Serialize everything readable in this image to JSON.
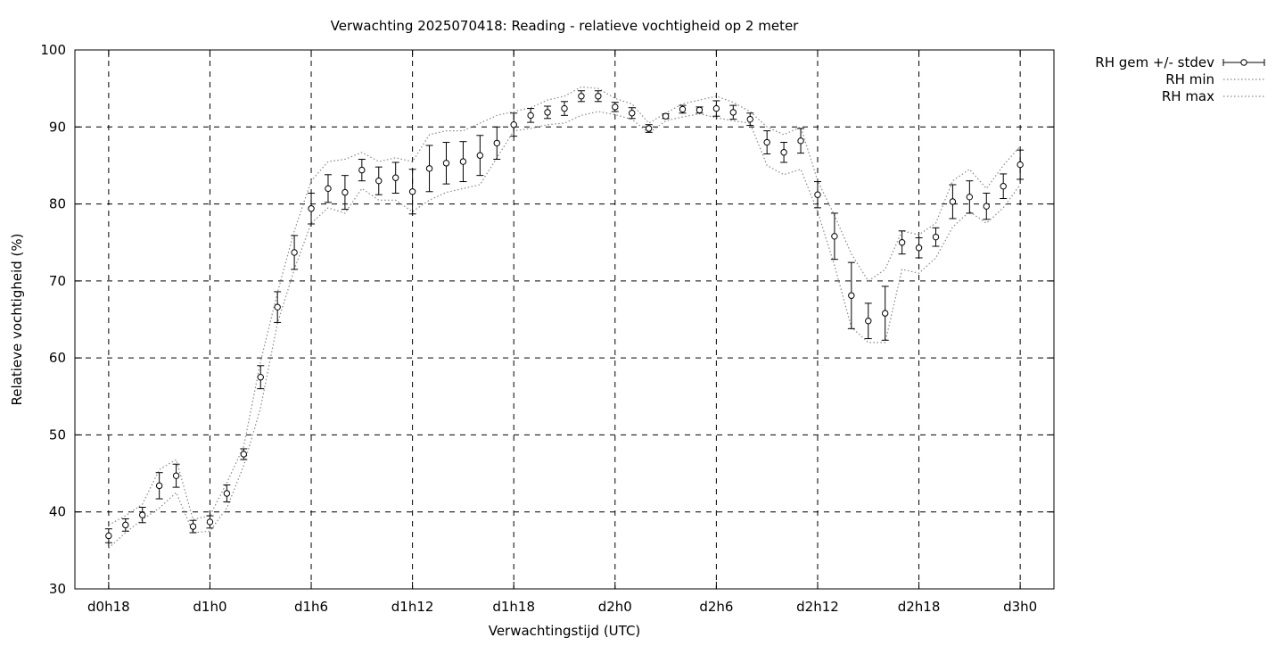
{
  "chart_data": {
    "type": "line",
    "title": "Verwachting 2025070418: Reading - relatieve vochtigheid op 2 meter",
    "xlabel": "Verwachtingstijd (UTC)",
    "ylabel": "Relatieve vochtigheid (%)",
    "ylim": [
      30,
      100
    ],
    "xlim": [
      -2,
      56
    ],
    "yticks": [
      30,
      40,
      50,
      60,
      70,
      80,
      90,
      100
    ],
    "xticks": [
      {
        "t": 0,
        "label": "d0h18"
      },
      {
        "t": 6,
        "label": "d1h0"
      },
      {
        "t": 12,
        "label": "d1h6"
      },
      {
        "t": 18,
        "label": "d1h12"
      },
      {
        "t": 24,
        "label": "d1h18"
      },
      {
        "t": 30,
        "label": "d2h0"
      },
      {
        "t": 36,
        "label": "d2h6"
      },
      {
        "t": 42,
        "label": "d2h12"
      },
      {
        "t": 48,
        "label": "d2h18"
      },
      {
        "t": 54,
        "label": "d3h0"
      }
    ],
    "grid": true,
    "legend_position": "outside-top-right",
    "legend": [
      {
        "name": "RH gem +/- stdev",
        "style": "errorbar"
      },
      {
        "name": "RH min",
        "style": "dotted"
      },
      {
        "name": "RH max",
        "style": "dotted"
      }
    ],
    "series": [
      {
        "name": "RH gem +/- stdev",
        "x": [
          0,
          1,
          2,
          3,
          4,
          5,
          6,
          7,
          8,
          9,
          10,
          11,
          12,
          13,
          14,
          15,
          16,
          17,
          18,
          19,
          20,
          21,
          22,
          23,
          24,
          25,
          26,
          27,
          28,
          29,
          30,
          31,
          32,
          33,
          34,
          35,
          36,
          37,
          38,
          39,
          40,
          41,
          42,
          43,
          44,
          45,
          46,
          47,
          48,
          49,
          50,
          51,
          52,
          53,
          54
        ],
        "values": [
          36.9,
          38.3,
          39.6,
          43.4,
          44.7,
          38.1,
          38.7,
          42.4,
          47.5,
          57.5,
          66.6,
          73.7,
          79.4,
          82.0,
          81.5,
          84.4,
          83.0,
          83.4,
          81.6,
          84.6,
          85.3,
          85.5,
          86.3,
          87.9,
          90.3,
          91.5,
          91.9,
          92.4,
          94.0,
          94.0,
          92.6,
          91.8,
          89.8,
          91.4,
          92.3,
          92.2,
          92.4,
          91.9,
          91.0,
          88.0,
          86.7,
          88.2,
          81.2,
          75.8,
          68.1,
          64.8,
          65.8,
          75.0,
          74.3,
          75.7,
          80.3,
          80.9,
          79.7,
          82.3,
          85.1
        ],
        "stdev": [
          0.9,
          0.8,
          1.0,
          1.7,
          1.5,
          0.8,
          0.8,
          1.1,
          0.7,
          1.5,
          2.0,
          2.2,
          2.0,
          1.8,
          2.2,
          1.4,
          1.8,
          2.0,
          2.9,
          3.0,
          2.7,
          2.6,
          2.6,
          2.1,
          1.5,
          0.9,
          0.8,
          0.9,
          0.7,
          0.7,
          0.6,
          0.7,
          0.5,
          0.3,
          0.5,
          0.4,
          1.0,
          0.9,
          0.8,
          1.5,
          1.3,
          1.6,
          1.7,
          3.0,
          4.3,
          2.3,
          3.5,
          1.5,
          1.3,
          1.2,
          2.2,
          2.1,
          1.7,
          1.6,
          1.9
        ]
      },
      {
        "name": "RH min",
        "x": [
          0,
          1,
          2,
          3,
          4,
          5,
          6,
          7,
          8,
          9,
          10,
          11,
          12,
          13,
          14,
          15,
          16,
          17,
          18,
          19,
          20,
          21,
          22,
          23,
          24,
          25,
          26,
          27,
          28,
          29,
          30,
          31,
          32,
          33,
          34,
          35,
          36,
          37,
          38,
          39,
          40,
          41,
          42,
          43,
          44,
          45,
          46,
          47,
          48,
          49,
          50,
          51,
          52,
          53,
          54
        ],
        "values": [
          35.3,
          37.3,
          39.0,
          40.5,
          42.5,
          37.3,
          37.5,
          40.5,
          46.0,
          53.5,
          64.5,
          71.5,
          77.5,
          79.5,
          78.8,
          82.0,
          80.5,
          80.5,
          79.0,
          80.5,
          81.5,
          82.0,
          82.5,
          86.0,
          89.5,
          89.8,
          90.3,
          90.5,
          91.5,
          92.0,
          91.6,
          91.0,
          89.2,
          90.8,
          91.3,
          91.7,
          91.2,
          90.8,
          90.5,
          85.0,
          83.8,
          84.5,
          79.0,
          72.0,
          64.0,
          62.0,
          62.0,
          71.5,
          71.0,
          73.0,
          77.0,
          79.0,
          77.5,
          79.5,
          82.5
        ]
      },
      {
        "name": "RH max",
        "x": [
          0,
          1,
          2,
          3,
          4,
          5,
          6,
          7,
          8,
          9,
          10,
          11,
          12,
          13,
          14,
          15,
          16,
          17,
          18,
          19,
          20,
          21,
          22,
          23,
          24,
          25,
          26,
          27,
          28,
          29,
          30,
          31,
          32,
          33,
          34,
          35,
          36,
          37,
          38,
          39,
          40,
          41,
          42,
          43,
          44,
          45,
          46,
          47,
          48,
          49,
          50,
          51,
          52,
          53,
          54
        ],
        "values": [
          38.3,
          39.5,
          41.0,
          45.5,
          46.8,
          39.0,
          39.5,
          43.8,
          48.5,
          59.5,
          68.5,
          76.5,
          83.0,
          85.5,
          85.8,
          86.7,
          85.5,
          86.0,
          85.5,
          89.0,
          89.5,
          89.5,
          90.5,
          91.5,
          92.0,
          92.5,
          93.5,
          94.0,
          95.2,
          95.0,
          93.7,
          93.0,
          90.5,
          91.8,
          93.0,
          93.5,
          94.0,
          93.2,
          92.0,
          90.0,
          89.0,
          90.0,
          83.0,
          78.5,
          73.5,
          70.0,
          71.5,
          76.5,
          76.0,
          77.5,
          83.0,
          84.5,
          82.0,
          85.0,
          87.5
        ]
      }
    ]
  }
}
